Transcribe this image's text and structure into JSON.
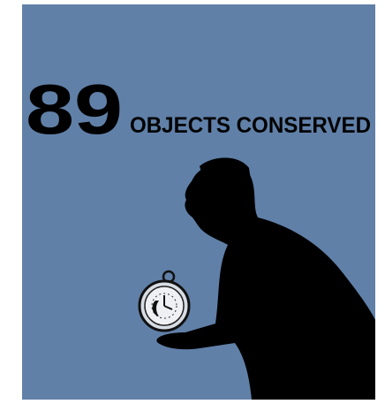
{
  "stat": {
    "number": "89",
    "label": "OBJECTS CONSERVED"
  }
}
